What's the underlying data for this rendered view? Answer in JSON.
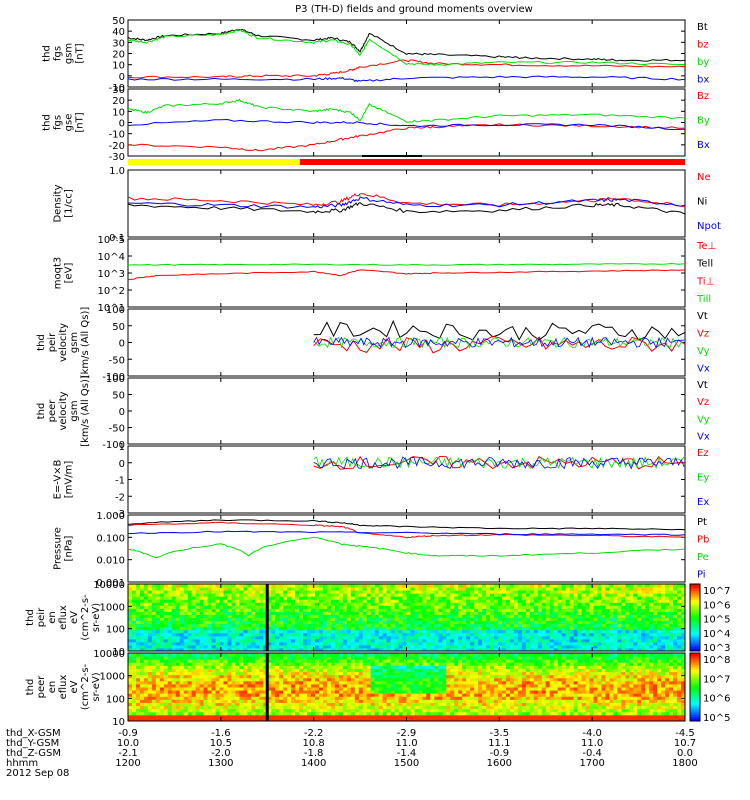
{
  "title": "P3 (TH-D) fields and ground moments overview",
  "date": "2012 Sep 08",
  "colors": {
    "black": "#000000",
    "red": "#ff0000",
    "green": "#00dd00",
    "blue": "#0000ff",
    "yellow": "#ffff00"
  },
  "ephemeris": {
    "rows": [
      {
        "label": "thd_X-GSM",
        "values": [
          "-0.9",
          "-1.6",
          "-2.2",
          "-2.9",
          "-3.5",
          "-4.0",
          "-4.5"
        ]
      },
      {
        "label": "thd_Y-GSM",
        "values": [
          "10.0",
          "10.5",
          "10.8",
          "11.0",
          "11.1",
          "11.0",
          "10.7"
        ]
      },
      {
        "label": "thd_Z-GSM",
        "values": [
          "-2.1",
          "-2.0",
          "-1.8",
          "-1.4",
          "-0.9",
          "-0.4",
          "0.0"
        ]
      },
      {
        "label": "hhmm",
        "values": [
          "1200",
          "1300",
          "1400",
          "1500",
          "1600",
          "1700",
          "1800"
        ]
      }
    ]
  },
  "chart_data": [
    {
      "type": "line",
      "id": "fgs_gsm",
      "ylabel_lines": [
        "thd",
        "fgs",
        "gsm",
        "[nT]"
      ],
      "ylim": [
        -10,
        50
      ],
      "yticks": [
        "50",
        "40",
        "30",
        "20",
        "10",
        "0",
        "-10"
      ],
      "legend": [
        {
          "name": "Bt",
          "color": "#000000"
        },
        {
          "name": "bz",
          "color": "#ff0000"
        },
        {
          "name": "by",
          "color": "#00dd00"
        },
        {
          "name": "bx",
          "color": "#0000ff"
        }
      ],
      "series": [
        {
          "name": "Bt",
          "x": [
            1200,
            1220,
            1240,
            1300,
            1320,
            1340,
            1400,
            1420,
            1440,
            1450,
            1460,
            1500,
            1530,
            1600,
            1630,
            1700,
            1730,
            1800
          ],
          "values": [
            34,
            32,
            36,
            38,
            42,
            36,
            32,
            34,
            30,
            22,
            38,
            20,
            19,
            17,
            16,
            15,
            14,
            14
          ]
        },
        {
          "name": "bz",
          "x": [
            1200,
            1300,
            1340,
            1400,
            1420,
            1440,
            1450,
            1500,
            1530,
            1600,
            1700,
            1800
          ],
          "values": [
            -1,
            -1,
            0,
            0,
            2,
            5,
            8,
            14,
            11,
            10,
            9,
            8
          ]
        },
        {
          "name": "by",
          "x": [
            1200,
            1220,
            1240,
            1300,
            1320,
            1340,
            1400,
            1420,
            1440,
            1450,
            1460,
            1500,
            1530,
            1600,
            1700,
            1800
          ],
          "values": [
            32,
            30,
            35,
            37,
            41,
            34,
            30,
            32,
            28,
            18,
            33,
            11,
            10,
            12,
            12,
            10
          ]
        },
        {
          "name": "bx",
          "x": [
            1200,
            1300,
            1400,
            1430,
            1450,
            1500,
            1600,
            1700,
            1800
          ],
          "values": [
            -3,
            -3,
            -3,
            -2,
            -5,
            -2,
            -1,
            -1,
            -3
          ]
        }
      ]
    },
    {
      "type": "line",
      "id": "fgs_gse",
      "ylabel_lines": [
        "thd",
        "fgs",
        "gse",
        "[nT]"
      ],
      "ylim": [
        -30,
        30
      ],
      "yticks": [
        "30",
        "20",
        "10",
        "0",
        "-10",
        "-20",
        "-30"
      ],
      "legend": [
        {
          "name": "Bz",
          "color": "#ff0000"
        },
        {
          "name": "By",
          "color": "#00dd00"
        },
        {
          "name": "Bx",
          "color": "#0000ff"
        }
      ],
      "series": [
        {
          "name": "Bz",
          "x": [
            1200,
            1300,
            1340,
            1400,
            1430,
            1450,
            1500,
            1530,
            1600,
            1700,
            1800
          ],
          "values": [
            -20,
            -22,
            -25,
            -20,
            -15,
            -12,
            -5,
            -4,
            -2,
            -3,
            -5
          ]
        },
        {
          "name": "By",
          "x": [
            1200,
            1220,
            1240,
            1300,
            1320,
            1340,
            1400,
            1420,
            1440,
            1450,
            1460,
            1500,
            1530,
            1600,
            1700,
            1800
          ],
          "values": [
            12,
            9,
            15,
            17,
            20,
            14,
            10,
            12,
            9,
            2,
            16,
            1,
            2,
            6,
            7,
            4
          ]
        },
        {
          "name": "Bx",
          "x": [
            1200,
            1300,
            1400,
            1450,
            1500,
            1600,
            1700,
            1800
          ],
          "values": [
            -2,
            2,
            0,
            0,
            -3,
            -2,
            -2,
            -6
          ]
        }
      ]
    },
    {
      "type": "line",
      "id": "density",
      "ylabel_lines": [
        "Density",
        "[1/cc]"
      ],
      "ylim": [
        0.1,
        1.0
      ],
      "yticks": [
        "1.0",
        "0.1"
      ],
      "scale": "log",
      "legend": [
        {
          "name": "Ne",
          "color": "#ff0000"
        },
        {
          "name": "Ni",
          "color": "#000000"
        },
        {
          "name": "Npot",
          "color": "#0000ff"
        }
      ],
      "series": [
        {
          "name": "Ne",
          "x": [
            1200,
            1300,
            1400,
            1430,
            1450,
            1500,
            1600,
            1700,
            1730,
            1800
          ],
          "values": [
            0.38,
            0.35,
            0.3,
            0.34,
            0.45,
            0.32,
            0.3,
            0.35,
            0.38,
            0.28
          ]
        },
        {
          "name": "Ni",
          "x": [
            1200,
            1300,
            1400,
            1430,
            1450,
            1500,
            1600,
            1700,
            1730,
            1800
          ],
          "values": [
            0.3,
            0.27,
            0.24,
            0.25,
            0.32,
            0.24,
            0.25,
            0.3,
            0.3,
            0.22
          ]
        },
        {
          "name": "Npot",
          "x": [
            1200,
            1300,
            1400,
            1430,
            1450,
            1500,
            1600,
            1700,
            1730,
            1800
          ],
          "values": [
            0.32,
            0.3,
            0.28,
            0.3,
            0.38,
            0.3,
            0.3,
            0.35,
            0.36,
            0.3
          ]
        }
      ]
    },
    {
      "type": "line",
      "id": "temperature",
      "ylabel_lines": [
        "moqt3",
        "[eV]"
      ],
      "ylim": [
        10,
        100000
      ],
      "yticks": [
        "10^5",
        "10^4",
        "10^3",
        "10^2",
        "10^1"
      ],
      "scale": "log",
      "legend": [
        {
          "name": "Te⊥",
          "color": "#ff0000"
        },
        {
          "name": "Tell",
          "color": "#000000"
        },
        {
          "name": "Ti⊥",
          "color": "#ff0000"
        },
        {
          "name": "Till",
          "color": "#00dd00"
        }
      ],
      "series": [
        {
          "name": "Ti",
          "x": [
            1200,
            1300,
            1400,
            1500,
            1600,
            1700,
            1800
          ],
          "values": [
            3000,
            3100,
            3200,
            3000,
            3100,
            3300,
            3500
          ]
        },
        {
          "name": "Te",
          "x": [
            1200,
            1230,
            1300,
            1400,
            1430,
            1450,
            1500,
            1530,
            1600,
            1700,
            1800
          ],
          "values": [
            400,
            700,
            900,
            1200,
            700,
            1500,
            900,
            1000,
            1100,
            1300,
            1500
          ]
        }
      ]
    },
    {
      "type": "line",
      "id": "peir_velocity",
      "ylabel_lines": [
        "thd",
        "peir",
        "velocity",
        "gsm",
        "[km/s (All Qs)]"
      ],
      "ylim": [
        -100,
        100
      ],
      "yticks": [
        "100",
        "50",
        "0",
        "-50",
        "-100"
      ],
      "legend": [
        {
          "name": "Vt",
          "color": "#000000"
        },
        {
          "name": "Vz",
          "color": "#ff0000"
        },
        {
          "name": "Vy",
          "color": "#00dd00"
        },
        {
          "name": "Vx",
          "color": "#0000ff"
        }
      ],
      "series": [
        {
          "name": "Vt",
          "x": [
            1400,
            1500,
            1600,
            1700,
            1800
          ],
          "values": [
            35,
            40,
            30,
            35,
            30
          ]
        },
        {
          "name": "Vz",
          "x": [
            1400,
            1500,
            1600,
            1700,
            1800
          ],
          "values": [
            -5,
            -10,
            -5,
            -8,
            -5
          ]
        }
      ]
    },
    {
      "type": "line",
      "id": "peer_velocity",
      "ylabel_lines": [
        "thd",
        "peer",
        "velocity",
        "gsm",
        "[km/s (All Qs)]"
      ],
      "ylim": [
        -100,
        100
      ],
      "yticks": [
        "100",
        "50",
        "0",
        "-50",
        "-100"
      ],
      "legend": [
        {
          "name": "Vt",
          "color": "#000000"
        },
        {
          "name": "Vz",
          "color": "#ff0000"
        },
        {
          "name": "Vy",
          "color": "#00dd00"
        },
        {
          "name": "Vx",
          "color": "#0000ff"
        }
      ],
      "series": []
    },
    {
      "type": "line",
      "id": "efield",
      "ylabel_lines": [
        "E=-V×B",
        "[mV/m]"
      ],
      "ylim": [
        -3,
        1
      ],
      "yticks": [
        "1",
        "0",
        "-1",
        "-2",
        "-3"
      ],
      "legend": [
        {
          "name": "Ez",
          "color": "#ff0000"
        },
        {
          "name": "Ey",
          "color": "#00dd00"
        },
        {
          "name": "Ex",
          "color": "#0000ff"
        }
      ],
      "series": [
        {
          "name": "Ez",
          "x": [
            1400,
            1500,
            1600,
            1700,
            1800
          ],
          "values": [
            0,
            0,
            0,
            0,
            0
          ]
        }
      ]
    },
    {
      "type": "line",
      "id": "pressure",
      "ylabel_lines": [
        "Pressure",
        "[nPa]"
      ],
      "ylim": [
        0.001,
        1.0
      ],
      "yticks": [
        "1.000",
        "0.100",
        "0.010",
        "0.001"
      ],
      "scale": "log",
      "legend": [
        {
          "name": "Pt",
          "color": "#000000"
        },
        {
          "name": "Pb",
          "color": "#ff0000"
        },
        {
          "name": "Pe",
          "color": "#00dd00"
        },
        {
          "name": "Pi",
          "color": "#0000ff"
        }
      ],
      "series": [
        {
          "name": "Pt",
          "x": [
            1200,
            1300,
            1400,
            1430,
            1450,
            1500,
            1600,
            1700,
            1800
          ],
          "values": [
            0.4,
            0.6,
            0.55,
            0.45,
            0.35,
            0.3,
            0.25,
            0.25,
            0.22
          ]
        },
        {
          "name": "Pb",
          "x": [
            1200,
            1300,
            1400,
            1430,
            1450,
            1500,
            1530,
            1600,
            1700,
            1800
          ],
          "values": [
            0.35,
            0.45,
            0.35,
            0.3,
            0.15,
            0.1,
            0.12,
            0.13,
            0.12,
            0.1
          ]
        },
        {
          "name": "Pe",
          "x": [
            1200,
            1230,
            1300,
            1330,
            1400,
            1430,
            1450,
            1500,
            1530,
            1600,
            1700,
            1800
          ],
          "values": [
            0.03,
            0.012,
            0.05,
            0.015,
            0.1,
            0.05,
            0.04,
            0.02,
            0.015,
            0.015,
            0.02,
            0.03
          ]
        },
        {
          "name": "Pi",
          "x": [
            1200,
            1300,
            1400,
            1500,
            1600,
            1700,
            1800
          ],
          "values": [
            0.15,
            0.18,
            0.17,
            0.16,
            0.14,
            0.14,
            0.13
          ]
        }
      ]
    },
    {
      "type": "heatmap",
      "id": "peir_spec",
      "ylabel_lines": [
        "thd",
        "peir",
        "en",
        "eflux",
        "eV",
        "(cm^2-s-",
        "sr-eV)"
      ],
      "ylim": [
        10,
        10000
      ],
      "yticks": [
        "10000",
        "1000",
        "100",
        "10"
      ],
      "scale": "log",
      "colorbar_ticks": [
        "10^7",
        "10^6",
        "10^5",
        "10^4",
        "10^3"
      ]
    },
    {
      "type": "heatmap",
      "id": "peer_spec",
      "ylabel_lines": [
        "thd",
        "peer",
        "en",
        "eflux",
        "eV",
        "(cm^2-s-",
        "sr-eV)"
      ],
      "ylim": [
        10,
        10000
      ],
      "yticks": [
        "10000",
        "1000",
        "100",
        "10"
      ],
      "scale": "log",
      "colorbar_ticks": [
        "10^8",
        "10^7",
        "10^6",
        "10^5"
      ]
    }
  ]
}
